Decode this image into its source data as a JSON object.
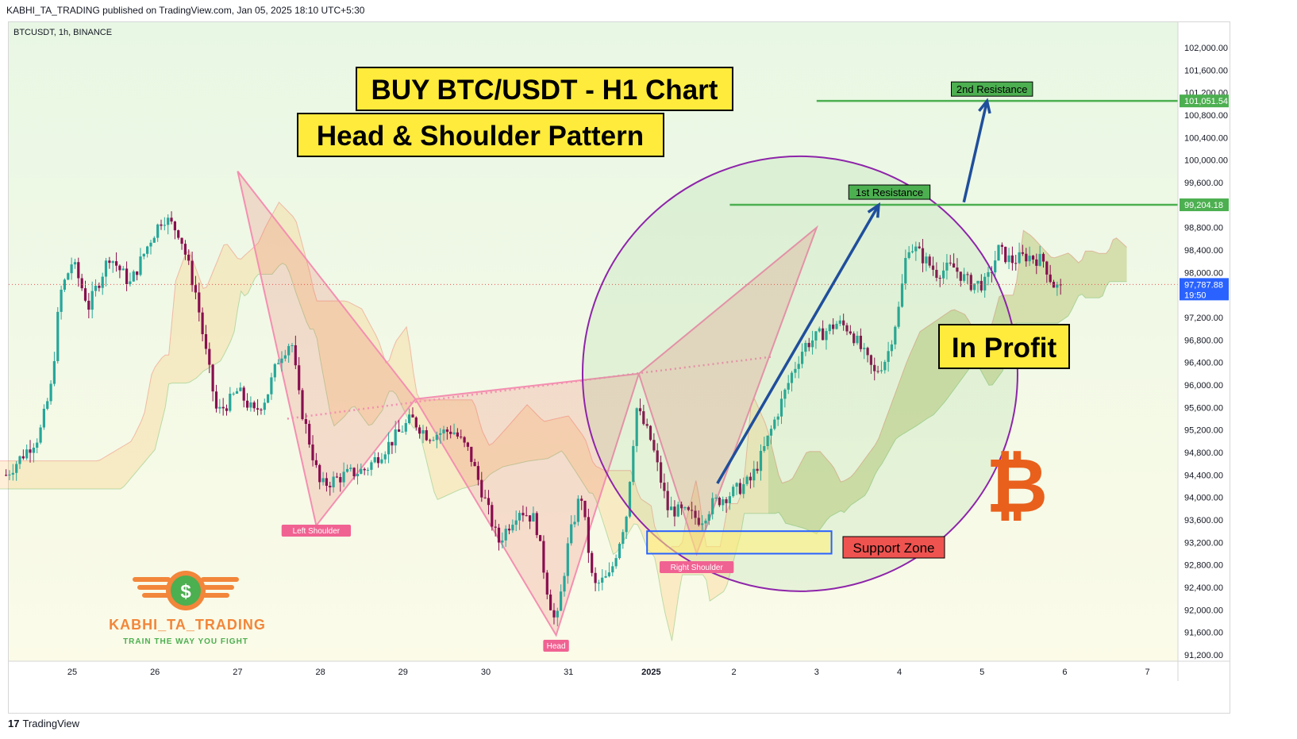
{
  "header": {
    "published_line": "KABHI_TA_TRADING published on TradingView.com, Jan 05, 2025 18:10 UTC+5:30"
  },
  "symbol_line": "BTCUSDT, 1h, BINANCE",
  "titles": {
    "main": "BUY BTC/USDT - H1 Chart",
    "pattern": "Head & Shoulder Pattern",
    "profit": "In Profit"
  },
  "labels": {
    "left_shoulder": "Left Shoulder",
    "head": "Head",
    "right_shoulder": "Right Shoulder",
    "support_zone": "Support Zone",
    "first_resistance": "1st Resistance",
    "second_resistance": "2nd Resistance"
  },
  "brand": {
    "name": "KABHI_TA_TRADING",
    "tagline": "TRAIN THE WAY YOU FIGHT",
    "logo_symbol": "$"
  },
  "footer": {
    "tv": "TradingView"
  },
  "colors": {
    "bull": "#26a69a",
    "bear": "#880e4f",
    "pattern": "#f48fb1",
    "resistance": "#4caf50",
    "arrow": "#1f4e9c",
    "circle": "#8e24aa",
    "label_yellow": "#ffeb3b",
    "support": "#ef5350",
    "bitcoin": "#e8601c"
  },
  "chart_data": {
    "type": "candlestick",
    "symbol": "BTCUSDT",
    "timeframe": "1h",
    "exchange": "BINANCE",
    "ylim": [
      91000,
      102200
    ],
    "yticks": [
      91200,
      91600,
      92000,
      92400,
      92800,
      93200,
      93600,
      94000,
      94400,
      94800,
      95200,
      95600,
      96000,
      96400,
      96800,
      97200,
      97600,
      98000,
      98400,
      98800,
      99200,
      99600,
      100000,
      100400,
      100800,
      101200,
      101600,
      102000
    ],
    "ytick_labels": [
      "91,200.00",
      "91,600.00",
      "92,000.00",
      "92,400.00",
      "92,800.00",
      "93,200.00",
      "93,600.00",
      "94,000.00",
      "94,400.00",
      "94,800.00",
      "95,200.00",
      "95,600.00",
      "96,000.00",
      "96,400.00",
      "96,800.00",
      "97,200.00",
      "97,600.00",
      "98,000.00",
      "98,400.00",
      "98,800.00",
      "99,200.00",
      "99,600.00",
      "100,000.00",
      "100,400.00",
      "100,800.00",
      "101,200.00",
      "101,600.00",
      "102,000.00"
    ],
    "xticks": [
      "25",
      "26",
      "27",
      "28",
      "29",
      "30",
      "31",
      "2025",
      "2",
      "3",
      "4",
      "5",
      "6",
      "7"
    ],
    "close_path": [
      [
        24.2,
        94400
      ],
      [
        24.6,
        95100
      ],
      [
        24.75,
        96000
      ],
      [
        24.85,
        97600
      ],
      [
        25.0,
        98200
      ],
      [
        25.2,
        97400
      ],
      [
        25.45,
        98300
      ],
      [
        25.7,
        97800
      ],
      [
        25.95,
        98600
      ],
      [
        26.1,
        99000
      ],
      [
        26.3,
        98700
      ],
      [
        26.5,
        97600
      ],
      [
        26.6,
        96700
      ],
      [
        26.75,
        95500
      ],
      [
        26.9,
        95700
      ],
      [
        27.0,
        95900
      ],
      [
        27.2,
        95500
      ],
      [
        27.35,
        95800
      ],
      [
        27.5,
        96500
      ],
      [
        27.65,
        96800
      ],
      [
        27.75,
        95700
      ],
      [
        27.9,
        94800
      ],
      [
        28.0,
        94200
      ],
      [
        28.3,
        94400
      ],
      [
        28.55,
        94500
      ],
      [
        28.8,
        94900
      ],
      [
        29.1,
        95400
      ],
      [
        29.3,
        95100
      ],
      [
        29.6,
        95200
      ],
      [
        29.8,
        94800
      ],
      [
        30.0,
        93900
      ],
      [
        30.15,
        93200
      ],
      [
        30.4,
        93800
      ],
      [
        30.6,
        93600
      ],
      [
        30.75,
        92300
      ],
      [
        30.85,
        91700
      ],
      [
        31.0,
        93200
      ],
      [
        31.15,
        94100
      ],
      [
        31.3,
        92400
      ],
      [
        31.5,
        92600
      ],
      [
        31.7,
        93700
      ],
      [
        31.82,
        95600
      ],
      [
        32.0,
        95000
      ],
      [
        32.2,
        93800
      ],
      [
        32.45,
        93700
      ],
      [
        32.6,
        93600
      ],
      [
        32.75,
        93900
      ],
      [
        33.0,
        94100
      ],
      [
        33.2,
        94300
      ],
      [
        33.35,
        94800
      ],
      [
        33.5,
        95400
      ],
      [
        33.7,
        96200
      ],
      [
        33.85,
        96700
      ],
      [
        34.05,
        96900
      ],
      [
        34.25,
        97100
      ],
      [
        34.4,
        97000
      ],
      [
        34.55,
        96600
      ],
      [
        34.7,
        96200
      ],
      [
        34.85,
        96500
      ],
      [
        35.0,
        97400
      ],
      [
        35.1,
        98500
      ],
      [
        35.2,
        98400
      ],
      [
        35.45,
        98000
      ],
      [
        35.65,
        98100
      ],
      [
        35.85,
        97800
      ],
      [
        36.05,
        97800
      ],
      [
        36.2,
        98400
      ],
      [
        36.35,
        98200
      ],
      [
        36.55,
        98300
      ],
      [
        36.75,
        98200
      ],
      [
        36.85,
        97800
      ],
      [
        36.95,
        97700
      ]
    ],
    "last_price": 97787.88,
    "last_price_label": "97,787.88",
    "countdown": "19:50",
    "levels": [
      {
        "name": "1st Resistance",
        "price": 99204.18,
        "label": "99,204.18"
      },
      {
        "name": "2nd Resistance",
        "price": 101051.54,
        "label": "101,051.54"
      }
    ],
    "pattern_points": {
      "left_shoulder": {
        "x": 27.95,
        "price": 93500
      },
      "head": {
        "x": 30.85,
        "price": 91550
      },
      "right_shoulder": {
        "x": 32.55,
        "price": 93000
      }
    },
    "neckline": [
      [
        27.6,
        95400
      ],
      [
        31.8,
        96200
      ],
      [
        33.45,
        96500
      ]
    ],
    "support_zone": [
      93000,
      93400
    ]
  }
}
